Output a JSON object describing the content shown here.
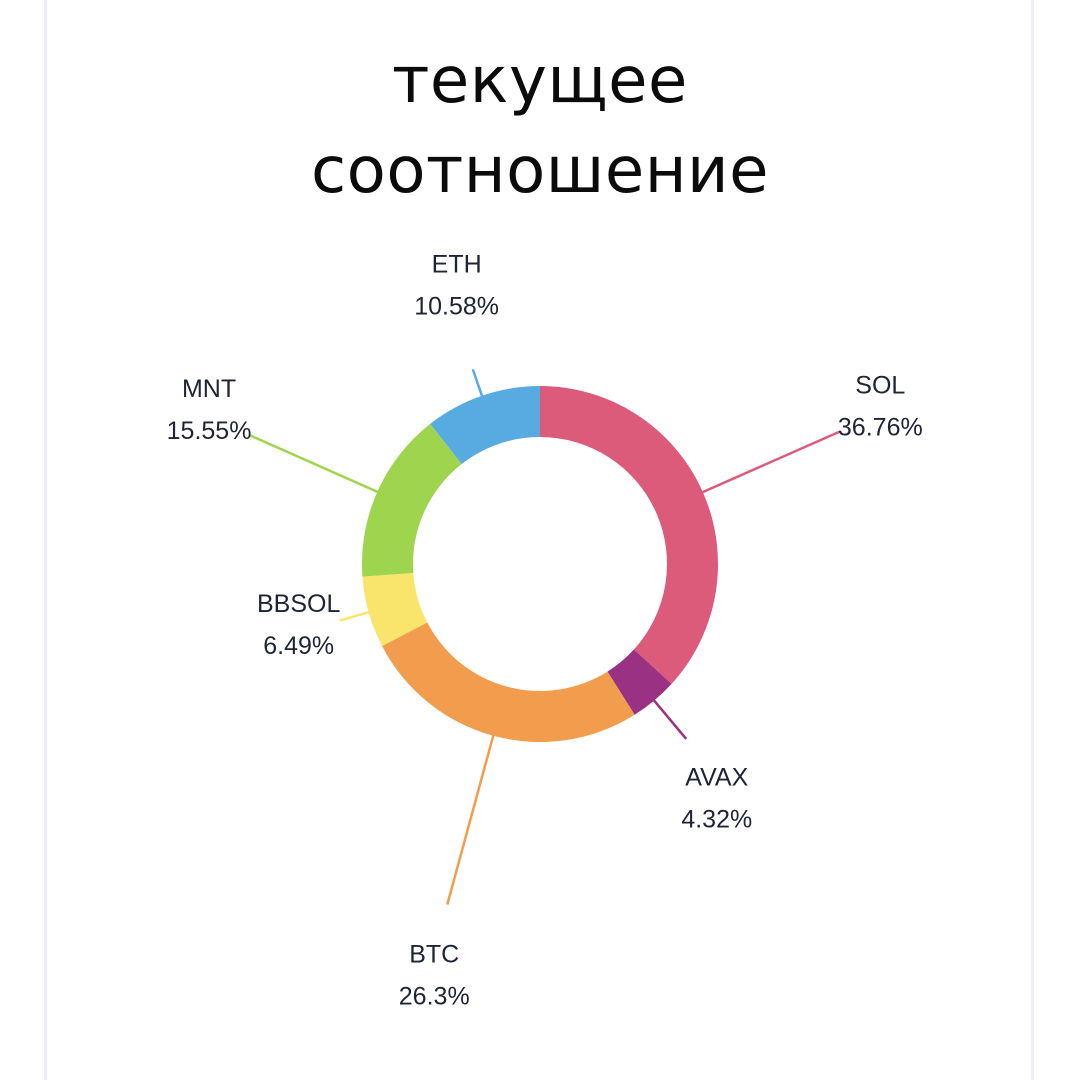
{
  "title_lines": [
    "текущее",
    "соотношение"
  ],
  "chart_data": {
    "type": "pie",
    "variant": "donut",
    "title": "текущее соотношение",
    "legend": "none",
    "slices": [
      {
        "label": "SOL",
        "value": 36.76,
        "value_label": "36.76%",
        "color": "#dc5a7a"
      },
      {
        "label": "AVAX",
        "value": 4.32,
        "value_label": "4.32%",
        "color": "#9b3183"
      },
      {
        "label": "BTC",
        "value": 26.3,
        "value_label": "26.3%",
        "color": "#f29d4d"
      },
      {
        "label": "BBSOL",
        "value": 6.49,
        "value_label": "6.49%",
        "color": "#f9e56b"
      },
      {
        "label": "MNT",
        "value": 15.55,
        "value_label": "15.55%",
        "color": "#9fd54e"
      },
      {
        "label": "ETH",
        "value": 10.58,
        "value_label": "10.58%",
        "color": "#58abe0"
      }
    ]
  }
}
